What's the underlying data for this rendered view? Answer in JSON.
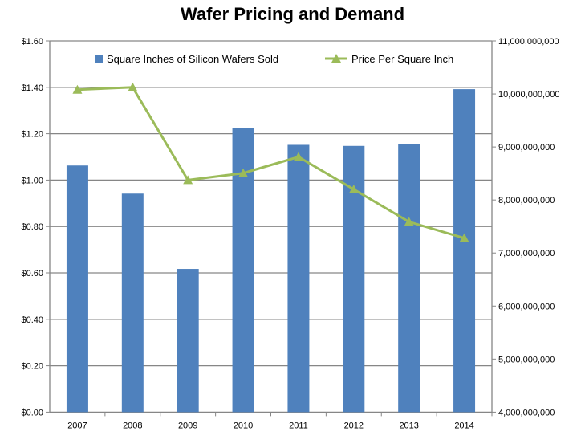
{
  "chart_data": {
    "type": "bar+line",
    "title": "Wafer Pricing and Demand",
    "categories": [
      "2007",
      "2008",
      "2009",
      "2010",
      "2011",
      "2012",
      "2013",
      "2014"
    ],
    "series": [
      {
        "name": "Square Inches of Silicon Wafers Sold",
        "type": "bar",
        "axis": "right",
        "color": "#4F81BD",
        "values": [
          8650000000,
          8120000000,
          6700000000,
          9360000000,
          9040000000,
          9020000000,
          9060000000,
          10090000000
        ]
      },
      {
        "name": "Price Per Square Inch",
        "type": "line",
        "axis": "left",
        "color": "#9BBB59",
        "marker": "triangle",
        "values": [
          1.39,
          1.4,
          1.0,
          1.03,
          1.1,
          0.96,
          0.82,
          0.75
        ]
      }
    ],
    "left_axis": {
      "ylim": [
        0,
        1.6
      ],
      "ticks": [
        "$0.00",
        "$0.20",
        "$0.40",
        "$0.60",
        "$0.80",
        "$1.00",
        "$1.20",
        "$1.40",
        "$1.60"
      ]
    },
    "right_axis": {
      "ylim": [
        4000000000,
        11000000000
      ],
      "ticks": [
        "4,000,000,000",
        "5,000,000,000",
        "6,000,000,000",
        "7,000,000,000",
        "8,000,000,000",
        "9,000,000,000",
        "10,000,000,000",
        "11,000,000,000"
      ]
    },
    "grid": true,
    "legend": "top"
  }
}
